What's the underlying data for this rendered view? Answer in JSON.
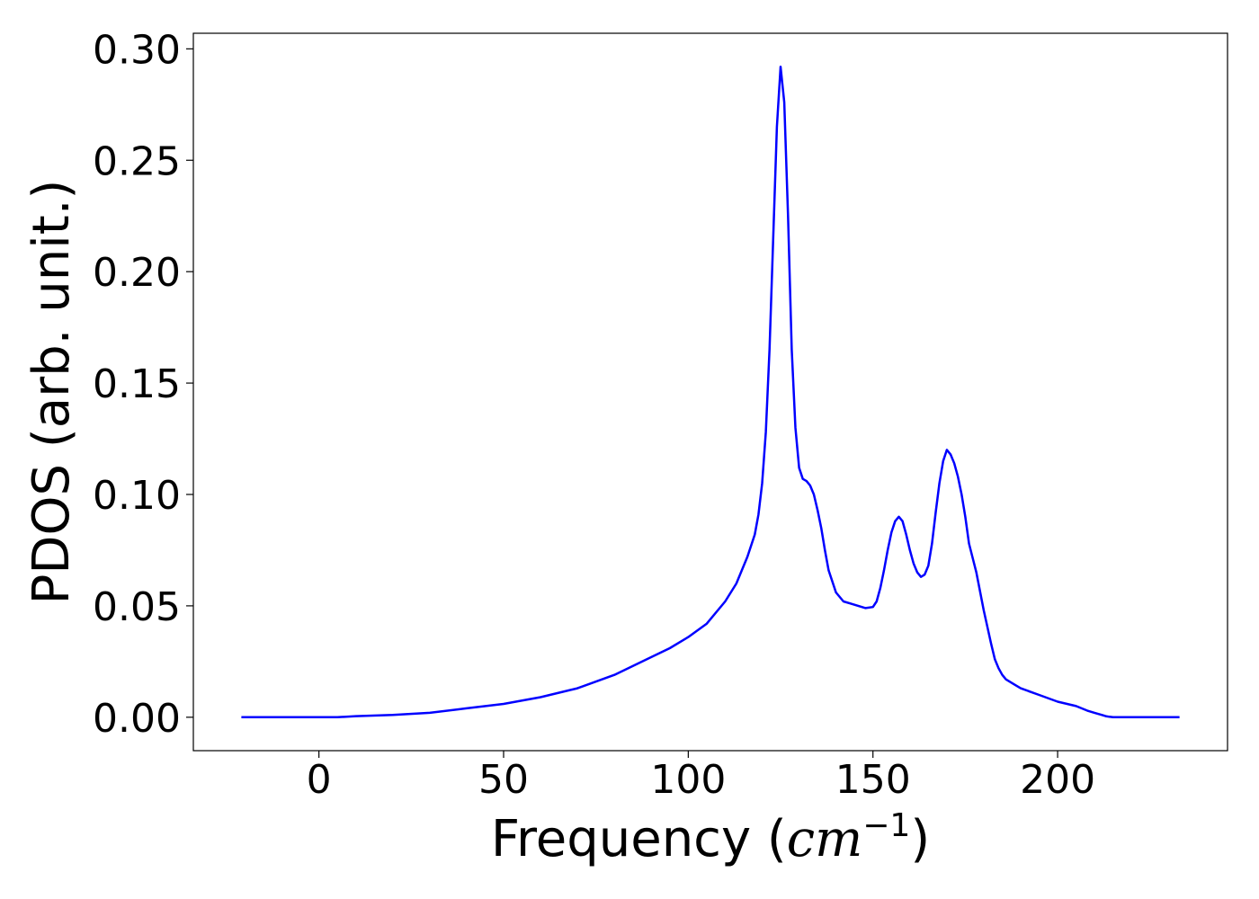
{
  "chart_data": {
    "type": "line",
    "title": "",
    "xlabel_prefix": "Frequency (",
    "xlabel_unit": "cm",
    "xlabel_exponent": "−1",
    "xlabel_suffix": ")",
    "ylabel": "PDOS (arb. unit.)",
    "xlim": [
      -34,
      246
    ],
    "ylim": [
      -0.015,
      0.307
    ],
    "xticks": [
      0,
      50,
      100,
      150,
      200
    ],
    "xtick_labels": [
      "0",
      "50",
      "100",
      "150",
      "200"
    ],
    "yticks": [
      0.0,
      0.05,
      0.1,
      0.15,
      0.2,
      0.25,
      0.3
    ],
    "ytick_labels": [
      "0.00",
      "0.05",
      "0.10",
      "0.15",
      "0.20",
      "0.25",
      "0.30"
    ],
    "grid": false,
    "legend": "none",
    "series": [
      {
        "color": "#0000ff",
        "x": [
          -21,
          -10,
          0,
          5,
          10,
          20,
          30,
          40,
          50,
          60,
          70,
          80,
          90,
          95,
          100,
          105,
          110,
          113,
          116,
          118,
          119,
          120,
          121,
          122,
          123,
          124,
          125,
          126,
          127,
          128,
          129,
          130,
          131,
          132,
          133,
          134,
          135,
          136,
          137,
          138,
          140,
          142,
          144,
          146,
          148,
          150,
          151,
          152,
          153,
          154,
          155,
          156,
          157,
          158,
          159,
          160,
          161,
          162,
          163,
          164,
          165,
          166,
          167,
          168,
          169,
          170,
          171,
          172,
          173,
          174,
          175,
          176,
          178,
          180,
          182,
          183,
          184,
          185,
          186,
          187,
          188,
          190,
          195,
          200,
          205,
          208,
          210,
          212,
          213,
          214,
          215,
          216,
          218,
          220,
          225,
          230,
          233
        ],
        "y": [
          0.0,
          0.0,
          0.0,
          0.0,
          0.0005,
          0.001,
          0.002,
          0.004,
          0.006,
          0.009,
          0.013,
          0.019,
          0.027,
          0.031,
          0.036,
          0.042,
          0.052,
          0.06,
          0.072,
          0.082,
          0.091,
          0.105,
          0.128,
          0.165,
          0.215,
          0.265,
          0.292,
          0.276,
          0.225,
          0.165,
          0.13,
          0.112,
          0.107,
          0.106,
          0.104,
          0.1,
          0.093,
          0.085,
          0.075,
          0.066,
          0.056,
          0.052,
          0.051,
          0.05,
          0.049,
          0.0495,
          0.052,
          0.058,
          0.066,
          0.075,
          0.083,
          0.088,
          0.09,
          0.088,
          0.082,
          0.075,
          0.069,
          0.065,
          0.063,
          0.064,
          0.068,
          0.078,
          0.092,
          0.105,
          0.115,
          0.12,
          0.118,
          0.114,
          0.108,
          0.1,
          0.09,
          0.078,
          0.065,
          0.048,
          0.033,
          0.026,
          0.022,
          0.019,
          0.017,
          0.016,
          0.015,
          0.013,
          0.01,
          0.007,
          0.005,
          0.003,
          0.002,
          0.001,
          0.0005,
          0.0002,
          0.0,
          0.0,
          0.0,
          0.0,
          0.0,
          0.0,
          0.0
        ]
      }
    ]
  }
}
